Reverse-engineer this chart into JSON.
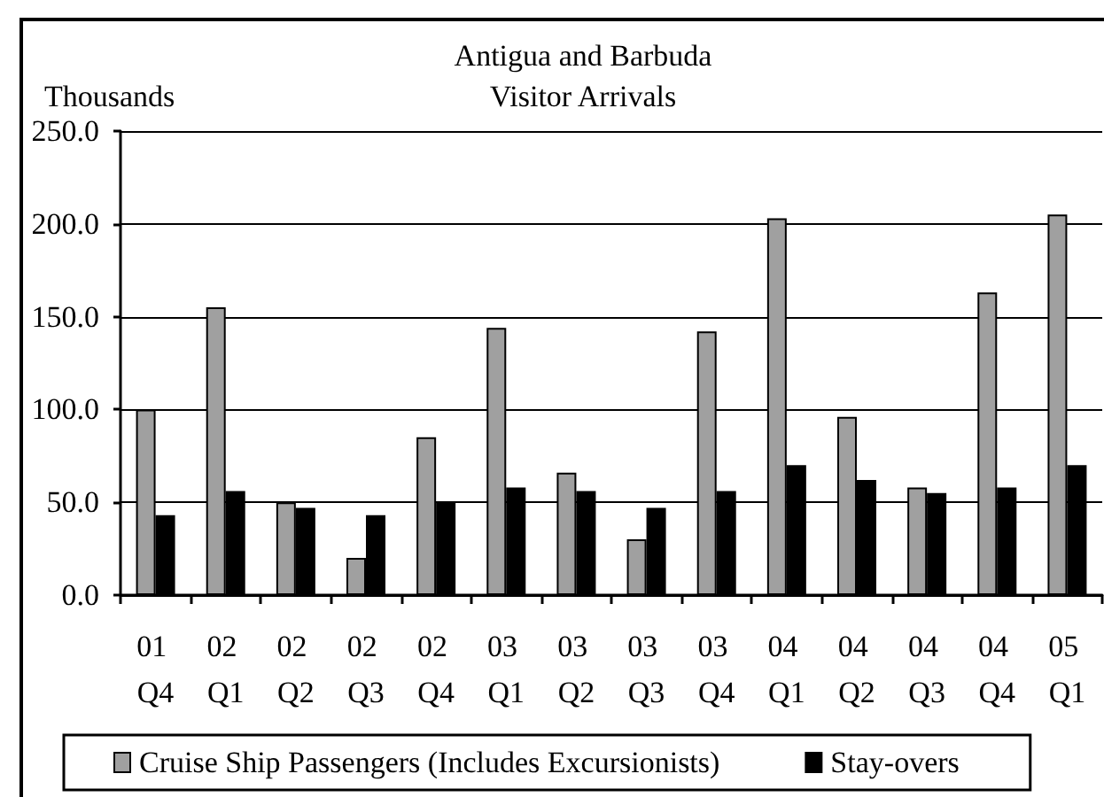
{
  "chart_data": {
    "type": "bar",
    "title": "Antigua and Barbuda",
    "subtitle": "Visitor Arrivals",
    "ylabel": "Thousands",
    "categories": [
      "01 Q4",
      "02 Q1",
      "02 Q2",
      "02 Q3",
      "02 Q4",
      "03 Q1",
      "03 Q2",
      "03 Q3",
      "03 Q4",
      "04 Q1",
      "04 Q2",
      "04 Q3",
      "04 Q4",
      "05 Q1"
    ],
    "series": [
      {
        "name": "Cruise Ship Passengers (Includes Excursionists)",
        "color": "#a0a0a0",
        "values": [
          100,
          155,
          50,
          20,
          85,
          144,
          66,
          30,
          142,
          203,
          96,
          58,
          163,
          205
        ]
      },
      {
        "name": "Stay-overs",
        "color": "#000000",
        "values": [
          43,
          56,
          47,
          43,
          50,
          58,
          56,
          47,
          56,
          70,
          62,
          55,
          58,
          70
        ]
      }
    ],
    "ylim": [
      0,
      250
    ],
    "yticks": [
      {
        "value": 0,
        "label": "0.0"
      },
      {
        "value": 50,
        "label": "50.0"
      },
      {
        "value": 100,
        "label": "100.0"
      },
      {
        "value": 150,
        "label": "150.0"
      },
      {
        "value": 200,
        "label": "200.0"
      },
      {
        "value": 250,
        "label": "250.0"
      }
    ],
    "grid": "y",
    "legend": "bottom"
  }
}
